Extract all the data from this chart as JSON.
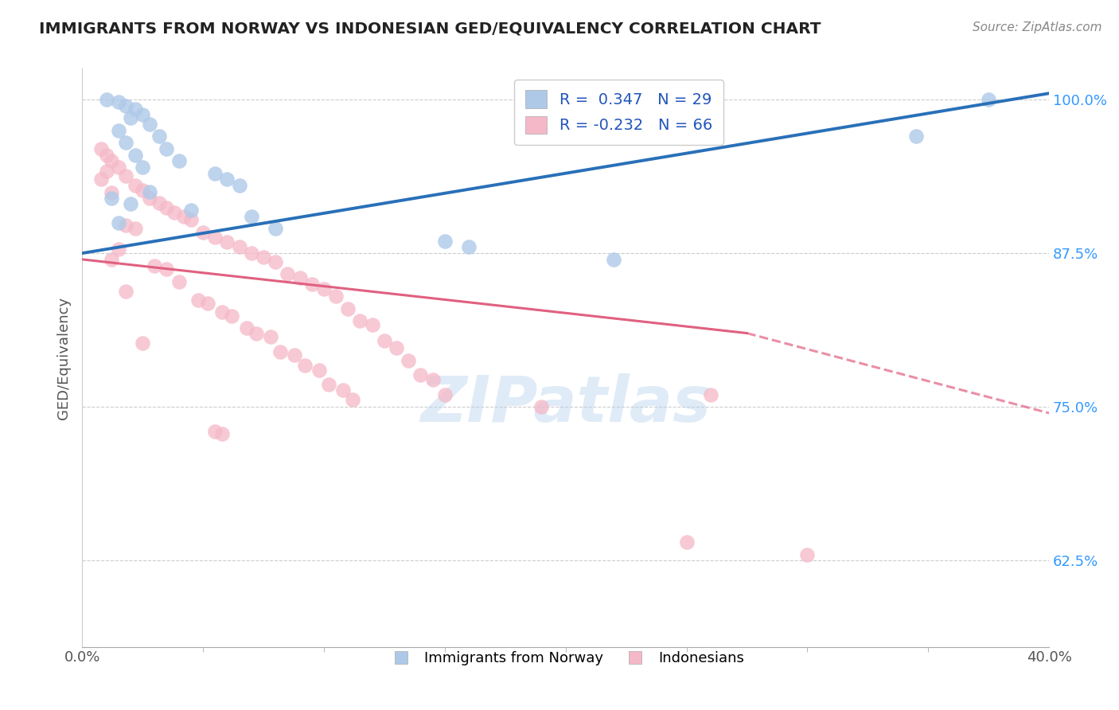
{
  "title": "IMMIGRANTS FROM NORWAY VS INDONESIAN GED/EQUIVALENCY CORRELATION CHART",
  "source_text": "Source: ZipAtlas.com",
  "ylabel": "GED/Equivalency",
  "xlim": [
    0.0,
    0.4
  ],
  "ylim": [
    0.555,
    1.025
  ],
  "ytick_labels": [
    "62.5%",
    "75.0%",
    "87.5%",
    "100.0%"
  ],
  "ytick_positions": [
    0.625,
    0.75,
    0.875,
    1.0
  ],
  "norway_r": 0.347,
  "norway_n": 29,
  "indonesia_r": -0.232,
  "indonesia_n": 66,
  "norway_color": "#aec9e8",
  "indonesia_color": "#f5b8c8",
  "trendline_norway_color": "#2970b8",
  "trendline_indonesia_color": "#e06080",
  "watermark": "ZIPatlas",
  "norway_points": [
    [
      0.01,
      1.0
    ],
    [
      0.015,
      0.998
    ],
    [
      0.018,
      0.995
    ],
    [
      0.022,
      0.992
    ],
    [
      0.025,
      0.988
    ],
    [
      0.02,
      0.985
    ],
    [
      0.028,
      0.98
    ],
    [
      0.015,
      0.975
    ],
    [
      0.032,
      0.97
    ],
    [
      0.018,
      0.965
    ],
    [
      0.035,
      0.96
    ],
    [
      0.022,
      0.955
    ],
    [
      0.04,
      0.95
    ],
    [
      0.025,
      0.945
    ],
    [
      0.055,
      0.94
    ],
    [
      0.06,
      0.935
    ],
    [
      0.065,
      0.93
    ],
    [
      0.028,
      0.925
    ],
    [
      0.012,
      0.92
    ],
    [
      0.02,
      0.915
    ],
    [
      0.045,
      0.91
    ],
    [
      0.07,
      0.905
    ],
    [
      0.015,
      0.9
    ],
    [
      0.08,
      0.895
    ],
    [
      0.15,
      0.885
    ],
    [
      0.16,
      0.88
    ],
    [
      0.22,
      0.87
    ],
    [
      0.345,
      0.97
    ],
    [
      0.375,
      1.0
    ]
  ],
  "indonesia_points": [
    [
      0.008,
      0.96
    ],
    [
      0.01,
      0.955
    ],
    [
      0.012,
      0.95
    ],
    [
      0.015,
      0.945
    ],
    [
      0.01,
      0.942
    ],
    [
      0.018,
      0.938
    ],
    [
      0.008,
      0.935
    ],
    [
      0.022,
      0.93
    ],
    [
      0.025,
      0.926
    ],
    [
      0.012,
      0.924
    ],
    [
      0.028,
      0.92
    ],
    [
      0.032,
      0.916
    ],
    [
      0.035,
      0.912
    ],
    [
      0.038,
      0.908
    ],
    [
      0.042,
      0.905
    ],
    [
      0.045,
      0.902
    ],
    [
      0.018,
      0.898
    ],
    [
      0.022,
      0.895
    ],
    [
      0.05,
      0.892
    ],
    [
      0.055,
      0.888
    ],
    [
      0.06,
      0.884
    ],
    [
      0.065,
      0.88
    ],
    [
      0.015,
      0.878
    ],
    [
      0.07,
      0.875
    ],
    [
      0.075,
      0.872
    ],
    [
      0.012,
      0.87
    ],
    [
      0.08,
      0.868
    ],
    [
      0.03,
      0.865
    ],
    [
      0.035,
      0.862
    ],
    [
      0.085,
      0.858
    ],
    [
      0.09,
      0.855
    ],
    [
      0.04,
      0.852
    ],
    [
      0.095,
      0.85
    ],
    [
      0.1,
      0.846
    ],
    [
      0.018,
      0.844
    ],
    [
      0.105,
      0.84
    ],
    [
      0.048,
      0.837
    ],
    [
      0.052,
      0.834
    ],
    [
      0.11,
      0.83
    ],
    [
      0.058,
      0.827
    ],
    [
      0.062,
      0.824
    ],
    [
      0.115,
      0.82
    ],
    [
      0.12,
      0.817
    ],
    [
      0.068,
      0.814
    ],
    [
      0.072,
      0.81
    ],
    [
      0.078,
      0.807
    ],
    [
      0.125,
      0.804
    ],
    [
      0.025,
      0.802
    ],
    [
      0.13,
      0.798
    ],
    [
      0.082,
      0.795
    ],
    [
      0.088,
      0.792
    ],
    [
      0.135,
      0.788
    ],
    [
      0.092,
      0.784
    ],
    [
      0.098,
      0.78
    ],
    [
      0.14,
      0.776
    ],
    [
      0.145,
      0.772
    ],
    [
      0.102,
      0.768
    ],
    [
      0.108,
      0.764
    ],
    [
      0.15,
      0.76
    ],
    [
      0.112,
      0.756
    ],
    [
      0.26,
      0.76
    ],
    [
      0.19,
      0.75
    ],
    [
      0.055,
      0.73
    ],
    [
      0.058,
      0.728
    ],
    [
      0.25,
      0.64
    ],
    [
      0.3,
      0.63
    ]
  ]
}
